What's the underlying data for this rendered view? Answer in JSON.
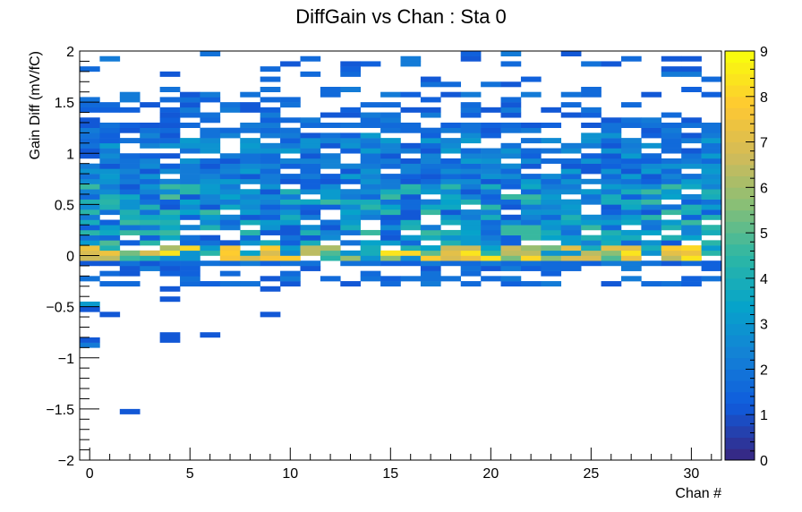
{
  "chart_data": {
    "type": "heatmap",
    "title": "DiffGain vs Chan : Sta 0",
    "xlabel": "Chan #",
    "ylabel": "Gain Diff (mV/fC)",
    "xlim": [
      -0.5,
      31.5
    ],
    "ylim": [
      -2,
      2
    ],
    "x_bins": 32,
    "y_bins": 80,
    "x_ticks": [
      0,
      5,
      10,
      15,
      20,
      25,
      30
    ],
    "x_tick_labels": [
      "0",
      "5",
      "10",
      "15",
      "20",
      "25",
      "30"
    ],
    "y_ticks": [
      -2,
      -1.5,
      -1,
      -0.5,
      0,
      0.5,
      1,
      1.5,
      2
    ],
    "y_tick_labels": [
      "−2",
      "−1.5",
      "−1",
      "−0.5",
      "0",
      "0.5",
      "1",
      "1.5",
      "2"
    ],
    "z_range": [
      0,
      9
    ],
    "z_ticks": [
      "0",
      "1",
      "2",
      "3",
      "4",
      "5",
      "6",
      "7",
      "8",
      "9"
    ],
    "colorbar_position": "right",
    "palette": [
      "#352a87",
      "#0f5cdd",
      "#1481d6",
      "#06a4ca",
      "#2eb7a4",
      "#87bf77",
      "#d1bb59",
      "#fec832",
      "#f9fb0e"
    ],
    "outlier_cells": [
      {
        "chan": 0,
        "gain": -0.5,
        "count": 3
      },
      {
        "chan": 0,
        "gain": -0.55,
        "count": 1
      },
      {
        "chan": 0,
        "gain": -0.85,
        "count": 1
      },
      {
        "chan": 0,
        "gain": -0.9,
        "count": 2
      },
      {
        "chan": 1,
        "gain": -0.6,
        "count": 1
      },
      {
        "chan": 2,
        "gain": -1.55,
        "count": 1
      },
      {
        "chan": 4,
        "gain": -0.35,
        "count": 1
      },
      {
        "chan": 4,
        "gain": -0.45,
        "count": 1
      },
      {
        "chan": 4,
        "gain": -0.8,
        "count": 1
      },
      {
        "chan": 4,
        "gain": -0.85,
        "count": 1
      },
      {
        "chan": 6,
        "gain": -0.8,
        "count": 1
      },
      {
        "chan": 9,
        "gain": -0.6,
        "count": 1
      },
      {
        "chan": 9,
        "gain": -0.35,
        "count": 1
      },
      {
        "chan": 13,
        "gain": -0.3,
        "count": 1
      },
      {
        "chan": 17,
        "gain": -0.3,
        "count": 2
      }
    ]
  }
}
